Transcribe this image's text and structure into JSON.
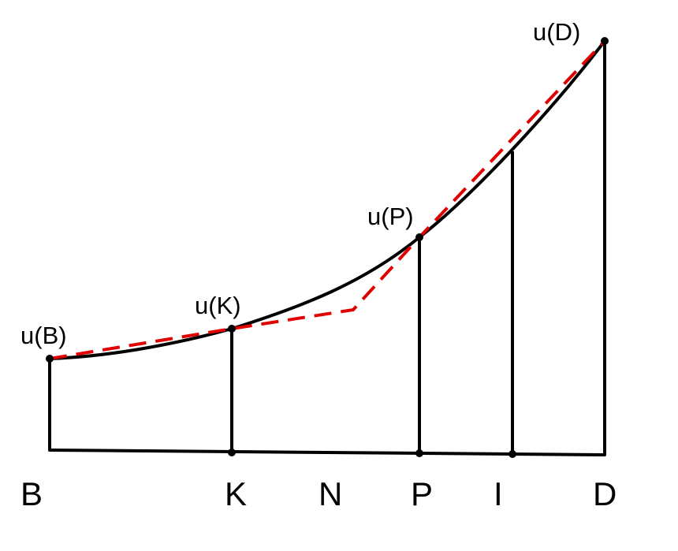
{
  "axis_labels": {
    "B": "B",
    "K": "K",
    "N": "N",
    "P": "P",
    "I": "I",
    "D": "D"
  },
  "point_labels": {
    "uB": "u(B)",
    "uK": "u(K)",
    "uP": "u(P)",
    "uD": "u(D)"
  },
  "colors": {
    "curve": "#000000",
    "dashed_line": "#e00000",
    "background": "#ffffff"
  }
}
